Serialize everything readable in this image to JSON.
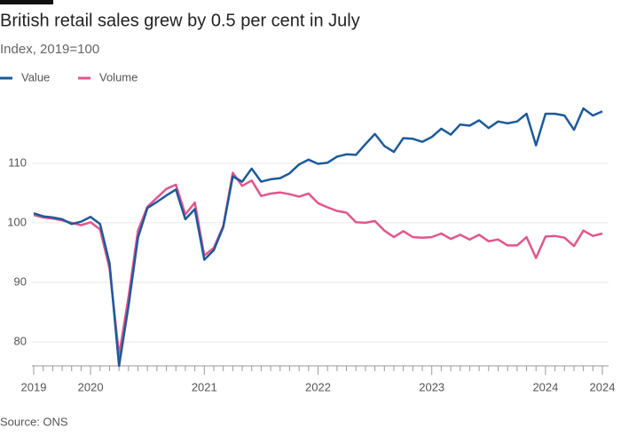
{
  "chart_data": {
    "type": "line",
    "title": "British retail sales grew by 0.5 per cent in July",
    "subtitle": "Index, 2019=100",
    "source": "Source: ONS",
    "categories": [
      "2019",
      null,
      null,
      null,
      null,
      null,
      "2020",
      null,
      null,
      null,
      null,
      null,
      null,
      null,
      null,
      null,
      null,
      null,
      "2021",
      null,
      null,
      null,
      null,
      null,
      null,
      null,
      null,
      null,
      null,
      null,
      "2022",
      null,
      null,
      null,
      null,
      null,
      null,
      null,
      null,
      null,
      null,
      null,
      "2023",
      null,
      null,
      null,
      null,
      null,
      null,
      null,
      null,
      null,
      null,
      null,
      "2024",
      null,
      null,
      null,
      null,
      null,
      "2024"
    ],
    "series": [
      {
        "name": "Value",
        "color": "#1d5a9b",
        "values": [
          101.6,
          101.1,
          100.9,
          100.6,
          99.8,
          100.2,
          101.0,
          99.8,
          93.2,
          76.0,
          86.0,
          97.5,
          102.5,
          103.5,
          104.6,
          105.6,
          100.6,
          102.3,
          93.8,
          95.4,
          99.3,
          107.8,
          106.9,
          109.1,
          106.9,
          107.3,
          107.5,
          108.3,
          109.8,
          110.6,
          109.9,
          110.1,
          111.1,
          111.5,
          111.4,
          113.2,
          114.9,
          112.9,
          111.9,
          114.2,
          114.1,
          113.6,
          114.4,
          115.8,
          114.8,
          116.5,
          116.3,
          117.2,
          115.9,
          117.0,
          116.7,
          117.0,
          118.3,
          113.0,
          118.3,
          118.3,
          118.0,
          115.6,
          119.2,
          118.0,
          118.7
        ]
      },
      {
        "name": "Volume",
        "color": "#e0568c",
        "values": [
          101.3,
          100.9,
          100.7,
          100.4,
          100.0,
          99.6,
          100.1,
          98.9,
          92.3,
          77.8,
          87.5,
          98.7,
          102.7,
          104.2,
          105.7,
          106.4,
          101.4,
          103.4,
          94.5,
          95.8,
          99.5,
          108.4,
          106.2,
          107.1,
          104.5,
          104.9,
          105.1,
          104.8,
          104.4,
          104.9,
          103.3,
          102.6,
          102.0,
          101.7,
          100.1,
          100.0,
          100.3,
          98.7,
          97.6,
          98.6,
          97.6,
          97.5,
          97.6,
          98.2,
          97.3,
          98.0,
          97.2,
          98.0,
          96.9,
          97.2,
          96.2,
          96.2,
          97.6,
          94.1,
          97.7,
          97.8,
          97.5,
          96.1,
          98.7,
          97.8,
          98.2
        ]
      }
    ],
    "ylim": [
      76,
      121
    ],
    "yticks": [
      80,
      90,
      100,
      110
    ],
    "grid": true
  }
}
